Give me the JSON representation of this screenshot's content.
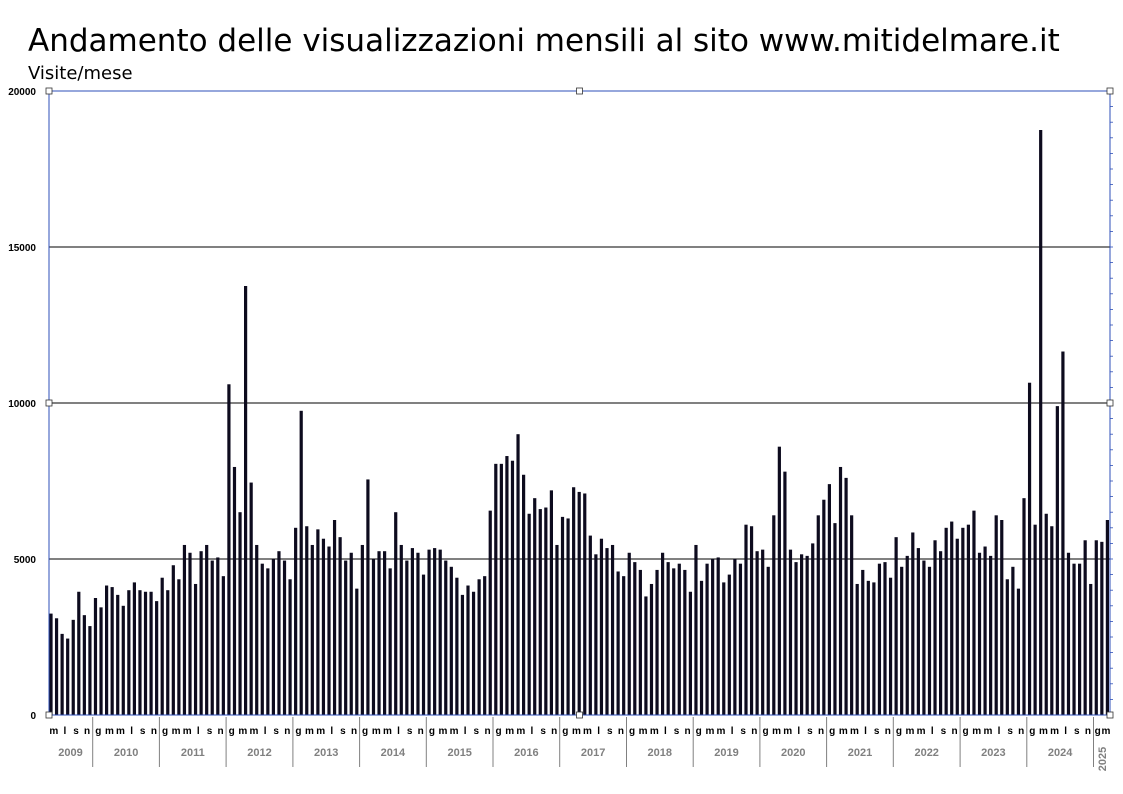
{
  "chart_data": {
    "type": "bar",
    "title": "Andamento delle visualizzazioni mensili al sito www.mitidelmare.it",
    "ylabel": "Visite/mese",
    "xlabel": "",
    "ylim": [
      0,
      20000
    ],
    "yticks": [
      0,
      5000,
      10000,
      15000,
      20000
    ],
    "grid": true,
    "legend": "none",
    "bar_color": "#0d0b1e",
    "grid_color": "#000000",
    "frame_color": "#2e4fb8",
    "year_label_color": "#808080",
    "year_groups": [
      {
        "year": "2009",
        "month_labels": [
          "m",
          "l",
          "s",
          "n"
        ]
      },
      {
        "year": "2010",
        "month_labels": [
          "g",
          "m",
          "m",
          "l",
          "s",
          "n"
        ]
      },
      {
        "year": "2011",
        "month_labels": [
          "g",
          "m",
          "m",
          "l",
          "s",
          "n"
        ]
      },
      {
        "year": "2012",
        "month_labels": [
          "g",
          "m",
          "m",
          "l",
          "s",
          "n"
        ]
      },
      {
        "year": "2013",
        "month_labels": [
          "g",
          "m",
          "m",
          "l",
          "s",
          "n"
        ]
      },
      {
        "year": "2014",
        "month_labels": [
          "g",
          "m",
          "m",
          "l",
          "s",
          "n"
        ]
      },
      {
        "year": "2015",
        "month_labels": [
          "g",
          "m",
          "m",
          "l",
          "s",
          "n"
        ]
      },
      {
        "year": "2016",
        "month_labels": [
          "g",
          "m",
          "m",
          "l",
          "s",
          "n"
        ]
      },
      {
        "year": "2017",
        "month_labels": [
          "g",
          "m",
          "m",
          "l",
          "s",
          "n"
        ]
      },
      {
        "year": "2018",
        "month_labels": [
          "g",
          "m",
          "m",
          "l",
          "s",
          "n"
        ]
      },
      {
        "year": "2019",
        "month_labels": [
          "g",
          "m",
          "m",
          "l",
          "s",
          "n"
        ]
      },
      {
        "year": "2020",
        "month_labels": [
          "g",
          "m",
          "m",
          "l",
          "s",
          "n"
        ]
      },
      {
        "year": "2021",
        "month_labels": [
          "g",
          "m",
          "m",
          "l",
          "s",
          "n"
        ]
      },
      {
        "year": "2022",
        "month_labels": [
          "g",
          "m",
          "m",
          "l",
          "s",
          "n"
        ]
      },
      {
        "year": "2023",
        "month_labels": [
          "g",
          "m",
          "m",
          "l",
          "s",
          "n"
        ]
      },
      {
        "year": "2024",
        "month_labels": [
          "g",
          "m",
          "m",
          "l",
          "s",
          "n"
        ]
      },
      {
        "year": "2025",
        "month_labels": [
          "g",
          "m"
        ]
      }
    ],
    "series": [
      {
        "year": "2009",
        "values": [
          3250,
          3100,
          2600,
          2450,
          3050,
          3950,
          3200,
          2850
        ]
      },
      {
        "year": "2010",
        "values": [
          3750,
          3450,
          4150,
          4100,
          3850,
          3500,
          4000,
          4250,
          4000,
          3950,
          3950,
          3650
        ]
      },
      {
        "year": "2011",
        "values": [
          4400,
          4000,
          4800,
          4350,
          5450,
          5200,
          4200,
          5250,
          5450,
          4950,
          5050,
          4450
        ]
      },
      {
        "year": "2012",
        "values": [
          10600,
          7950,
          6500,
          13750,
          7450,
          5450,
          4850,
          4700,
          5000,
          5250,
          4950,
          4350
        ]
      },
      {
        "year": "2013",
        "values": [
          6000,
          9750,
          6050,
          5450,
          5950,
          5650,
          5400,
          6250,
          5700,
          4950,
          5200,
          4050
        ]
      },
      {
        "year": "2014",
        "values": [
          5450,
          7550,
          5000,
          5250,
          5250,
          4700,
          6500,
          5450,
          4950,
          5350,
          5200,
          4500
        ]
      },
      {
        "year": "2015",
        "values": [
          5300,
          5350,
          5300,
          4950,
          4750,
          4400,
          3850,
          4150,
          3950,
          4350,
          4450,
          6550
        ]
      },
      {
        "year": "2016",
        "values": [
          8050,
          8050,
          8300,
          8150,
          9000,
          7700,
          6450,
          6950,
          6600,
          6650,
          7200,
          5450
        ]
      },
      {
        "year": "2017",
        "values": [
          6350,
          6300,
          7300,
          7150,
          7100,
          5750,
          5150,
          5650,
          5350,
          5450,
          4600,
          4450
        ]
      },
      {
        "year": "2018",
        "values": [
          5200,
          4900,
          4650,
          3800,
          4200,
          4650,
          5200,
          4900,
          4700,
          4850,
          4650,
          3950
        ]
      },
      {
        "year": "2019",
        "values": [
          5450,
          4300,
          4850,
          5000,
          5050,
          4250,
          4500,
          5000,
          4850,
          6100,
          6050,
          5250
        ]
      },
      {
        "year": "2020",
        "values": [
          5300,
          4750,
          6400,
          8600,
          7800,
          5300,
          4900,
          5150,
          5100,
          5500,
          6400,
          6900
        ]
      },
      {
        "year": "2021",
        "values": [
          7400,
          6150,
          7950,
          7600,
          6400,
          4200,
          4650,
          4300,
          4250,
          4850,
          4900,
          4400
        ]
      },
      {
        "year": "2022",
        "values": [
          5700,
          4750,
          5100,
          5850,
          5350,
          4950,
          4750,
          5600,
          5250,
          6000,
          6200,
          5650
        ]
      },
      {
        "year": "2023",
        "values": [
          6000,
          6100,
          6550,
          5200,
          5400,
          5100,
          6400,
          6250,
          4350,
          4750,
          4050,
          6950
        ]
      },
      {
        "year": "2024",
        "values": [
          10650,
          6100,
          18750,
          6450,
          6050,
          9900,
          11650,
          5200,
          4850,
          4850,
          5600,
          4200
        ]
      },
      {
        "year": "2025",
        "values": [
          5600,
          5550,
          6250
        ]
      }
    ]
  }
}
